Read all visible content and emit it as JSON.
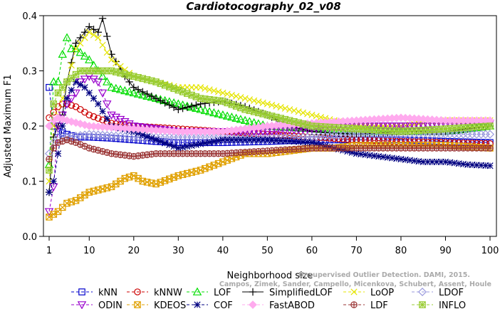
{
  "chart_data": {
    "type": "line",
    "title": "Cardiotocography_02_v08",
    "xlabel": "Neighborhood size",
    "ylabel": "Adjusted Maximum F1",
    "xlim": [
      1,
      100
    ],
    "ylim": [
      0.0,
      0.4
    ],
    "x_ticks": [
      "1",
      "10",
      "20",
      "30",
      "40",
      "50",
      "60",
      "70",
      "80",
      "90",
      "100"
    ],
    "y_ticks": [
      "0.0",
      "0.1",
      "0.2",
      "0.3",
      "0.4"
    ],
    "grid": false,
    "legend_position": "bottom",
    "watermark": [
      "Unsupervised Outlier Detection. DAMI, 2015.",
      "Campos, Zimek, Sander, Campello, Micenkova, Schubert, Assent, Houle"
    ],
    "series": [
      {
        "name": "kNN",
        "color": "#0000cc",
        "marker": "square",
        "dash": "4,3",
        "points": [
          [
            1,
            0.27
          ],
          [
            2,
            0.2
          ],
          [
            3,
            0.19
          ],
          [
            5,
            0.185
          ],
          [
            7,
            0.18
          ],
          [
            10,
            0.18
          ],
          [
            15,
            0.178
          ],
          [
            20,
            0.175
          ],
          [
            25,
            0.172
          ],
          [
            30,
            0.17
          ],
          [
            40,
            0.17
          ],
          [
            50,
            0.172
          ],
          [
            60,
            0.175
          ],
          [
            70,
            0.175
          ],
          [
            80,
            0.175
          ],
          [
            90,
            0.172
          ],
          [
            100,
            0.17
          ]
        ]
      },
      {
        "name": "kNNW",
        "color": "#cc0000",
        "marker": "circle",
        "dash": "4,3",
        "points": [
          [
            1,
            0.215
          ],
          [
            2,
            0.225
          ],
          [
            3,
            0.235
          ],
          [
            4,
            0.24
          ],
          [
            5,
            0.24
          ],
          [
            7,
            0.235
          ],
          [
            10,
            0.22
          ],
          [
            15,
            0.205
          ],
          [
            20,
            0.2
          ],
          [
            30,
            0.195
          ],
          [
            40,
            0.19
          ],
          [
            50,
            0.185
          ],
          [
            60,
            0.18
          ],
          [
            70,
            0.175
          ],
          [
            80,
            0.172
          ],
          [
            90,
            0.17
          ],
          [
            100,
            0.168
          ]
        ]
      },
      {
        "name": "LOF",
        "color": "#00dd00",
        "marker": "triangle",
        "dash": "4,3",
        "points": [
          [
            1,
            0.13
          ],
          [
            2,
            0.28
          ],
          [
            3,
            0.28
          ],
          [
            4,
            0.33
          ],
          [
            5,
            0.36
          ],
          [
            6,
            0.34
          ],
          [
            7,
            0.34
          ],
          [
            10,
            0.32
          ],
          [
            15,
            0.27
          ],
          [
            20,
            0.26
          ],
          [
            25,
            0.25
          ],
          [
            30,
            0.24
          ],
          [
            40,
            0.22
          ],
          [
            50,
            0.2
          ],
          [
            60,
            0.195
          ],
          [
            70,
            0.19
          ],
          [
            80,
            0.19
          ],
          [
            90,
            0.19
          ],
          [
            100,
            0.2
          ]
        ]
      },
      {
        "name": "SimplifiedLOF",
        "color": "#000000",
        "marker": "plus",
        "dash": "",
        "points": [
          [
            1,
            0.08
          ],
          [
            2,
            0.18
          ],
          [
            3,
            0.2
          ],
          [
            4,
            0.22
          ],
          [
            5,
            0.28
          ],
          [
            7,
            0.35
          ],
          [
            10,
            0.38
          ],
          [
            12,
            0.37
          ],
          [
            13,
            0.395
          ],
          [
            15,
            0.33
          ],
          [
            18,
            0.29
          ],
          [
            20,
            0.27
          ],
          [
            25,
            0.25
          ],
          [
            30,
            0.23
          ],
          [
            35,
            0.24
          ],
          [
            40,
            0.245
          ],
          [
            45,
            0.235
          ],
          [
            50,
            0.22
          ],
          [
            55,
            0.2
          ],
          [
            60,
            0.19
          ],
          [
            70,
            0.185
          ],
          [
            80,
            0.19
          ],
          [
            90,
            0.19
          ],
          [
            100,
            0.2
          ]
        ]
      },
      {
        "name": "LoOP",
        "color": "#e5e500",
        "marker": "x",
        "dash": "4,3",
        "points": [
          [
            1,
            0.1
          ],
          [
            2,
            0.2
          ],
          [
            3,
            0.22
          ],
          [
            5,
            0.28
          ],
          [
            7,
            0.34
          ],
          [
            10,
            0.37
          ],
          [
            12,
            0.36
          ],
          [
            15,
            0.32
          ],
          [
            20,
            0.29
          ],
          [
            25,
            0.28
          ],
          [
            30,
            0.27
          ],
          [
            35,
            0.27
          ],
          [
            40,
            0.26
          ],
          [
            45,
            0.25
          ],
          [
            50,
            0.24
          ],
          [
            55,
            0.23
          ],
          [
            60,
            0.22
          ],
          [
            65,
            0.21
          ],
          [
            70,
            0.2
          ],
          [
            80,
            0.2
          ],
          [
            90,
            0.21
          ],
          [
            100,
            0.21
          ]
        ]
      },
      {
        "name": "LDOF",
        "color": "#9999dd",
        "marker": "diamond",
        "dash": "4,3",
        "points": [
          [
            1,
            0.15
          ],
          [
            2,
            0.17
          ],
          [
            3,
            0.18
          ],
          [
            5,
            0.18
          ],
          [
            10,
            0.185
          ],
          [
            20,
            0.18
          ],
          [
            30,
            0.18
          ],
          [
            40,
            0.18
          ],
          [
            50,
            0.18
          ],
          [
            60,
            0.18
          ],
          [
            70,
            0.185
          ],
          [
            80,
            0.185
          ],
          [
            90,
            0.185
          ],
          [
            100,
            0.185
          ]
        ]
      },
      {
        "name": "ODIN",
        "color": "#9900cc",
        "marker": "triangle-down",
        "dash": "4,3",
        "points": [
          [
            1,
            0.045
          ],
          [
            2,
            0.09
          ],
          [
            3,
            0.2
          ],
          [
            5,
            0.24
          ],
          [
            7,
            0.26
          ],
          [
            8,
            0.28
          ],
          [
            10,
            0.29
          ],
          [
            12,
            0.28
          ],
          [
            15,
            0.22
          ],
          [
            20,
            0.2
          ],
          [
            30,
            0.19
          ],
          [
            40,
            0.19
          ],
          [
            50,
            0.19
          ],
          [
            60,
            0.195
          ],
          [
            70,
            0.2
          ],
          [
            80,
            0.2
          ],
          [
            90,
            0.2
          ],
          [
            100,
            0.205
          ]
        ]
      },
      {
        "name": "KDEOS",
        "color": "#e0a000",
        "marker": "square-x",
        "dash": "4,3",
        "points": [
          [
            1,
            0.035
          ],
          [
            2,
            0.04
          ],
          [
            3,
            0.045
          ],
          [
            5,
            0.06
          ],
          [
            7,
            0.065
          ],
          [
            10,
            0.08
          ],
          [
            15,
            0.09
          ],
          [
            18,
            0.105
          ],
          [
            20,
            0.11
          ],
          [
            22,
            0.1
          ],
          [
            25,
            0.095
          ],
          [
            30,
            0.11
          ],
          [
            35,
            0.12
          ],
          [
            40,
            0.135
          ],
          [
            45,
            0.15
          ],
          [
            50,
            0.15
          ],
          [
            55,
            0.155
          ],
          [
            60,
            0.16
          ],
          [
            65,
            0.16
          ],
          [
            70,
            0.165
          ],
          [
            80,
            0.165
          ],
          [
            90,
            0.165
          ],
          [
            100,
            0.16
          ]
        ]
      },
      {
        "name": "COF",
        "color": "#000080",
        "marker": "star",
        "dash": "4,3",
        "points": [
          [
            1,
            0.08
          ],
          [
            2,
            0.1
          ],
          [
            3,
            0.15
          ],
          [
            4,
            0.2
          ],
          [
            5,
            0.25
          ],
          [
            7,
            0.28
          ],
          [
            9,
            0.27
          ],
          [
            10,
            0.26
          ],
          [
            12,
            0.24
          ],
          [
            15,
            0.2
          ],
          [
            20,
            0.19
          ],
          [
            25,
            0.175
          ],
          [
            30,
            0.16
          ],
          [
            40,
            0.175
          ],
          [
            50,
            0.175
          ],
          [
            60,
            0.17
          ],
          [
            65,
            0.16
          ],
          [
            70,
            0.15
          ],
          [
            75,
            0.145
          ],
          [
            80,
            0.14
          ],
          [
            85,
            0.135
          ],
          [
            90,
            0.135
          ],
          [
            95,
            0.13
          ],
          [
            100,
            0.128
          ]
        ]
      },
      {
        "name": "FastABOD",
        "color": "#ffaaee",
        "marker": "diamond-filled",
        "dash": "4,3",
        "points": [
          [
            1,
            0.2
          ],
          [
            2,
            0.21
          ],
          [
            3,
            0.215
          ],
          [
            5,
            0.21
          ],
          [
            10,
            0.2
          ],
          [
            20,
            0.195
          ],
          [
            30,
            0.19
          ],
          [
            40,
            0.19
          ],
          [
            50,
            0.2
          ],
          [
            60,
            0.205
          ],
          [
            70,
            0.21
          ],
          [
            80,
            0.215
          ],
          [
            90,
            0.21
          ],
          [
            100,
            0.21
          ]
        ]
      },
      {
        "name": "LDF",
        "color": "#993333",
        "marker": "circle-plus",
        "dash": "4,3",
        "points": [
          [
            1,
            0.14
          ],
          [
            2,
            0.16
          ],
          [
            3,
            0.17
          ],
          [
            5,
            0.175
          ],
          [
            7,
            0.17
          ],
          [
            10,
            0.16
          ],
          [
            15,
            0.15
          ],
          [
            20,
            0.145
          ],
          [
            25,
            0.15
          ],
          [
            30,
            0.15
          ],
          [
            40,
            0.15
          ],
          [
            50,
            0.155
          ],
          [
            60,
            0.16
          ],
          [
            70,
            0.16
          ],
          [
            80,
            0.16
          ],
          [
            90,
            0.16
          ],
          [
            100,
            0.16
          ]
        ]
      },
      {
        "name": "INFLO",
        "color": "#99cc33",
        "marker": "square-star",
        "dash": "4,3",
        "points": [
          [
            1,
            0.12
          ],
          [
            2,
            0.24
          ],
          [
            3,
            0.26
          ],
          [
            5,
            0.28
          ],
          [
            8,
            0.3
          ],
          [
            10,
            0.3
          ],
          [
            15,
            0.3
          ],
          [
            20,
            0.29
          ],
          [
            25,
            0.28
          ],
          [
            30,
            0.265
          ],
          [
            35,
            0.25
          ],
          [
            40,
            0.245
          ],
          [
            45,
            0.23
          ],
          [
            50,
            0.22
          ],
          [
            55,
            0.21
          ],
          [
            60,
            0.2
          ],
          [
            70,
            0.195
          ],
          [
            80,
            0.19
          ],
          [
            90,
            0.195
          ],
          [
            100,
            0.2
          ]
        ]
      }
    ]
  },
  "legend": [
    {
      "name": "kNN",
      "color": "#0000cc",
      "marker": "square",
      "dash": "4,3"
    },
    {
      "name": "kNNW",
      "color": "#cc0000",
      "marker": "circle",
      "dash": "4,3"
    },
    {
      "name": "LOF",
      "color": "#00dd00",
      "marker": "triangle",
      "dash": "4,3"
    },
    {
      "name": "SimplifiedLOF",
      "color": "#000000",
      "marker": "plus",
      "dash": ""
    },
    {
      "name": "LoOP",
      "color": "#e5e500",
      "marker": "x",
      "dash": "4,3"
    },
    {
      "name": "LDOF",
      "color": "#9999dd",
      "marker": "diamond",
      "dash": "4,3"
    },
    {
      "name": "ODIN",
      "color": "#9900cc",
      "marker": "triangle-down",
      "dash": "4,3"
    },
    {
      "name": "KDEOS",
      "color": "#e0a000",
      "marker": "square-x",
      "dash": "4,3"
    },
    {
      "name": "COF",
      "color": "#000080",
      "marker": "star",
      "dash": "4,3"
    },
    {
      "name": "FastABOD",
      "color": "#ffaaee",
      "marker": "diamond-filled",
      "dash": "4,3"
    },
    {
      "name": "LDF",
      "color": "#993333",
      "marker": "circle-plus",
      "dash": "4,3"
    },
    {
      "name": "INFLO",
      "color": "#99cc33",
      "marker": "square-star",
      "dash": "4,3"
    }
  ]
}
